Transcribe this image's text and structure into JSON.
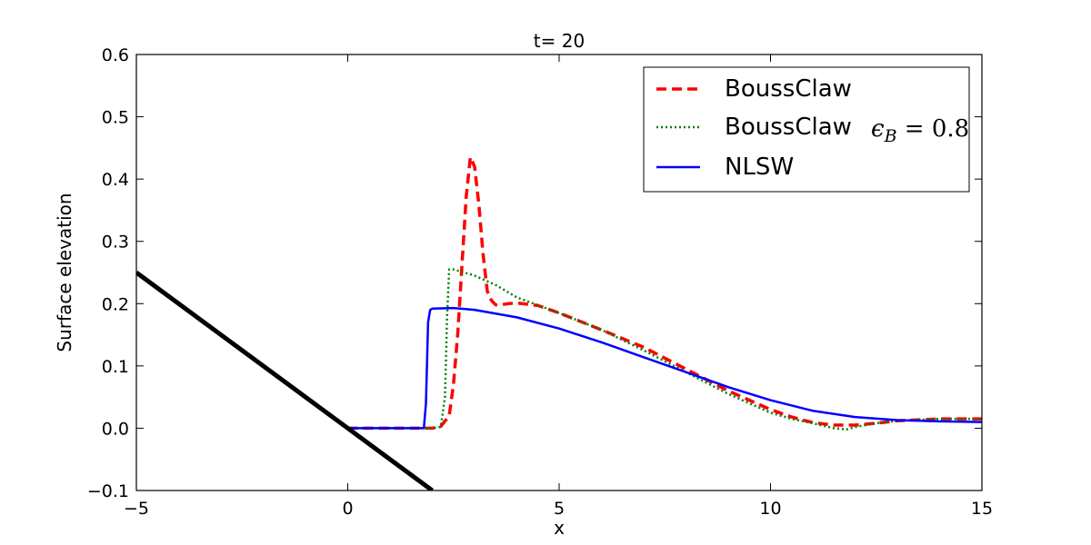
{
  "chart_data": {
    "type": "line",
    "title": "t= 20",
    "xlabel": "x",
    "ylabel": "Surface elevation",
    "xlim": [
      -5,
      15
    ],
    "ylim": [
      -0.1,
      0.6
    ],
    "xticks": [
      -5,
      0,
      5,
      10,
      15
    ],
    "yticks": [
      -0.1,
      0.0,
      0.1,
      0.2,
      0.3,
      0.4,
      0.5,
      0.6
    ],
    "xtick_labels": [
      "−5",
      "0",
      "5",
      "10",
      "15"
    ],
    "ytick_labels": [
      "−0.1",
      "0.0",
      "0.1",
      "0.2",
      "0.3",
      "0.4",
      "0.5",
      "0.6"
    ],
    "legend_position": "top-right",
    "series": [
      {
        "name": "BoussClaw",
        "color": "#ff0000",
        "style": "dashed",
        "x": [
          0.0,
          1.0,
          2.0,
          2.2,
          2.4,
          2.5,
          2.6,
          2.7,
          2.8,
          2.9,
          3.0,
          3.1,
          3.2,
          3.3,
          3.4,
          3.5,
          3.6,
          3.8,
          4.0,
          4.5,
          5.0,
          6.0,
          7.0,
          8.0,
          9.0,
          10.0,
          10.5,
          11.0,
          11.5,
          12.0,
          12.5,
          13.0,
          14.0,
          15.0
        ],
        "y": [
          0.0,
          0.0,
          0.0,
          0.003,
          0.02,
          0.07,
          0.15,
          0.26,
          0.37,
          0.435,
          0.42,
          0.36,
          0.28,
          0.22,
          0.205,
          0.198,
          0.198,
          0.2,
          0.201,
          0.197,
          0.185,
          0.158,
          0.13,
          0.095,
          0.06,
          0.03,
          0.018,
          0.009,
          0.005,
          0.005,
          0.008,
          0.012,
          0.015,
          0.015
        ]
      },
      {
        "name": "BoussClaw",
        "name_math": "ϵB = 0.8",
        "color": "#007f00",
        "style": "dotted",
        "x": [
          0.0,
          1.0,
          2.0,
          2.2,
          2.3,
          2.35,
          2.4,
          2.5,
          3.0,
          3.5,
          4.0,
          5.0,
          6.0,
          7.0,
          8.0,
          9.0,
          10.0,
          10.5,
          11.0,
          11.5,
          11.8,
          12.0,
          12.5,
          13.0,
          14.0,
          15.0
        ],
        "y": [
          0.0,
          0.0,
          0.0,
          0.002,
          0.05,
          0.18,
          0.255,
          0.255,
          0.245,
          0.23,
          0.21,
          0.185,
          0.158,
          0.125,
          0.09,
          0.055,
          0.025,
          0.015,
          0.008,
          0.0,
          -0.002,
          0.002,
          0.008,
          0.012,
          0.015,
          0.015
        ]
      },
      {
        "name": "NLSW",
        "color": "#0000ff",
        "style": "solid",
        "x": [
          0.0,
          1.0,
          1.8,
          1.85,
          1.9,
          1.95,
          2.0,
          2.5,
          3.0,
          4.0,
          5.0,
          6.0,
          7.0,
          8.0,
          9.0,
          10.0,
          11.0,
          12.0,
          13.0,
          14.0,
          15.0
        ],
        "y": [
          0.0,
          0.0,
          0.0,
          0.04,
          0.17,
          0.19,
          0.192,
          0.193,
          0.19,
          0.178,
          0.16,
          0.138,
          0.114,
          0.09,
          0.066,
          0.045,
          0.028,
          0.018,
          0.013,
          0.011,
          0.01
        ]
      },
      {
        "name": "",
        "color": "#000000",
        "style": "solid-thick",
        "x": [
          -5,
          2.0
        ],
        "y": [
          0.25,
          -0.1
        ]
      }
    ]
  }
}
